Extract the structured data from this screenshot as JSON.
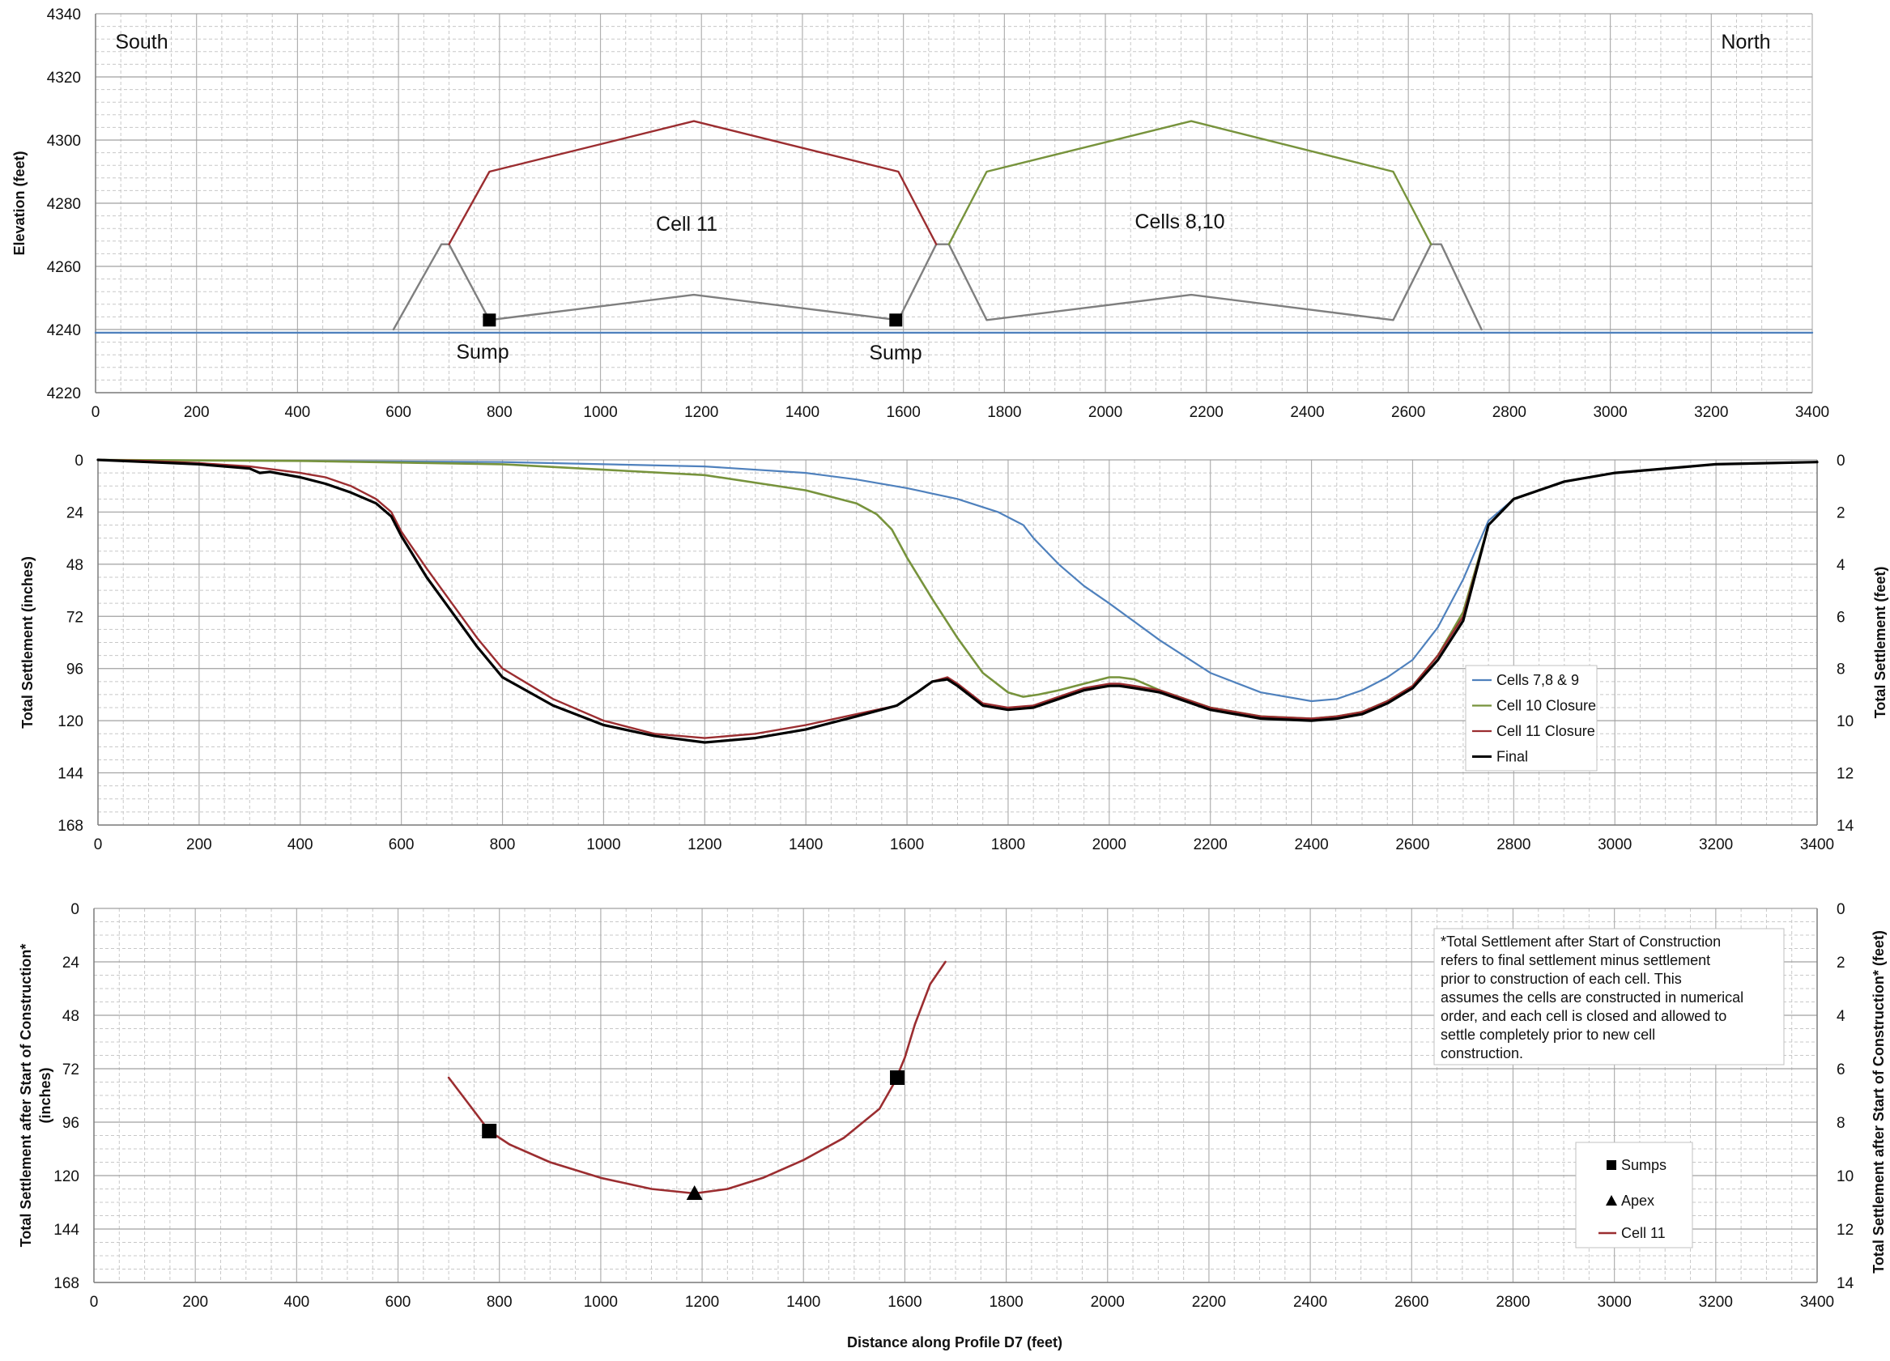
{
  "chart_data": [
    {
      "type": "line",
      "ylabel": "Elevation (feet)",
      "xlim": [
        0,
        3400
      ],
      "ylim": [
        4220,
        4340
      ],
      "xticks": [
        0,
        200,
        400,
        600,
        800,
        1000,
        1200,
        1400,
        1600,
        1800,
        2000,
        2200,
        2400,
        2600,
        2800,
        3000,
        3200,
        3400
      ],
      "yticks": [
        4220,
        4240,
        4260,
        4280,
        4300,
        4320,
        4340
      ],
      "grid": true,
      "annotations": [
        "South",
        "North",
        "Cell 11",
        "Cells 8,10",
        "Sump",
        "Sump"
      ],
      "series": [
        {
          "color": "#9b2d30",
          "x": [
            700,
            780,
            1185,
            1590,
            1665
          ],
          "y": [
            4267,
            4290,
            4306,
            4290,
            4267
          ]
        },
        {
          "color": "#77933c",
          "x": [
            1690,
            1765,
            2170,
            2570,
            2645
          ],
          "y": [
            4267,
            4290,
            4306,
            4290,
            4267
          ]
        },
        {
          "color": "#7f7f7f",
          "x": [
            590,
            685,
            700,
            780,
            1185,
            1590,
            1665,
            1690,
            1765,
            2170,
            2570,
            2645,
            2665,
            2745
          ],
          "y": [
            4240,
            4267,
            4267,
            4243,
            4251,
            4243,
            4267,
            4267,
            4243,
            4251,
            4243,
            4267,
            4267,
            4240
          ]
        },
        {
          "color": "#4f81bd",
          "x": [
            0,
            3400
          ],
          "y": [
            4239,
            4239
          ]
        }
      ],
      "markers": [
        {
          "x": 780,
          "y": 4243
        },
        {
          "x": 1585,
          "y": 4243
        }
      ]
    },
    {
      "type": "line",
      "ylabel": "Total Settlement (inches)",
      "ylabel_right": "Total Settlement (feet)",
      "xlim": [
        0,
        3400
      ],
      "ylim": [
        0,
        168
      ],
      "ylim_right": [
        0,
        14
      ],
      "y_inverted": true,
      "xticks": [
        0,
        200,
        400,
        600,
        800,
        1000,
        1200,
        1400,
        1600,
        1800,
        2000,
        2200,
        2400,
        2600,
        2800,
        3000,
        3200,
        3400
      ],
      "yticks": [
        0,
        24,
        48,
        72,
        96,
        120,
        144,
        168
      ],
      "yticks_right": [
        0,
        2,
        4,
        6,
        8,
        10,
        12,
        14
      ],
      "grid": true,
      "legend_position": "right",
      "series": [
        {
          "name": "Cells 7,8 & 9",
          "color": "#4f81bd",
          "x": [
            0,
            400,
            800,
            1200,
            1400,
            1500,
            1600,
            1700,
            1780,
            1830,
            1850,
            1900,
            1950,
            2000,
            2100,
            2200,
            2300,
            2400,
            2450,
            2500,
            2550,
            2600,
            2650,
            2700,
            2750,
            2800,
            2900,
            3000,
            3200,
            3400
          ],
          "y": [
            0,
            0.5,
            1,
            3,
            6,
            9,
            13,
            18,
            24,
            30,
            36,
            48,
            58,
            66,
            83,
            98,
            107,
            111,
            110,
            106,
            100,
            92,
            77,
            55,
            28,
            18,
            10,
            6,
            2,
            1
          ]
        },
        {
          "name": "Cell 10 Closure",
          "color": "#77933c",
          "x": [
            0,
            400,
            800,
            1200,
            1400,
            1500,
            1540,
            1570,
            1600,
            1650,
            1700,
            1750,
            1800,
            1830,
            1860,
            1900,
            1950,
            2000,
            2020,
            2050,
            2100,
            2200,
            2300,
            2400,
            2450,
            2500,
            2550,
            2600,
            2650,
            2700,
            2750,
            2800,
            2900,
            3000,
            3200,
            3400
          ],
          "y": [
            0,
            0.5,
            2,
            7,
            14,
            20,
            25,
            32,
            45,
            64,
            82,
            98,
            107,
            109,
            108,
            106,
            103,
            100,
            100,
            101,
            106,
            114,
            118,
            119,
            118,
            116,
            111,
            104,
            90,
            70,
            30,
            18,
            10,
            6,
            2,
            1
          ]
        },
        {
          "name": "Cell 11 Closure",
          "color": "#9b2d30",
          "x": [
            0,
            100,
            200,
            300,
            400,
            450,
            500,
            550,
            580,
            600,
            650,
            700,
            750,
            800,
            900,
            1000,
            1100,
            1200,
            1300,
            1400,
            1500,
            1580,
            1620,
            1650,
            1680,
            1700,
            1750,
            1800,
            1850,
            1900,
            1950,
            2000,
            2020,
            2050,
            2100,
            2200,
            2300,
            2400,
            2450,
            2500,
            2550,
            2600,
            2650,
            2700,
            2750,
            2800,
            2900,
            3000,
            3200,
            3400
          ],
          "y": [
            0,
            0.5,
            1.5,
            3,
            6,
            8,
            12,
            18,
            24,
            33,
            50,
            66,
            82,
            96,
            110,
            120,
            126,
            128,
            126,
            122,
            117,
            113,
            107,
            102,
            100,
            103,
            112,
            114,
            113,
            109,
            105,
            103,
            103,
            104,
            106,
            114,
            118,
            119,
            118,
            116,
            111,
            104,
            90,
            72,
            30,
            18,
            10,
            6,
            2,
            1
          ]
        },
        {
          "name": "Final",
          "color": "#000000",
          "x": [
            0,
            100,
            200,
            300,
            320,
            340,
            400,
            450,
            500,
            550,
            580,
            600,
            650,
            700,
            750,
            800,
            900,
            1000,
            1100,
            1200,
            1300,
            1400,
            1500,
            1580,
            1620,
            1650,
            1680,
            1700,
            1750,
            1800,
            1850,
            1900,
            1950,
            2000,
            2020,
            2050,
            2100,
            2200,
            2300,
            2400,
            2450,
            2500,
            2550,
            2600,
            2650,
            2700,
            2750,
            2800,
            2900,
            3000,
            3200,
            3400
          ],
          "y": [
            0,
            1,
            2,
            4,
            6,
            5.5,
            8,
            11,
            15,
            20,
            26,
            35,
            54,
            70,
            86,
            100,
            113,
            122,
            127,
            130,
            128,
            124,
            118,
            113,
            107,
            102,
            101,
            104,
            113,
            115,
            114,
            110,
            106,
            104,
            104,
            105,
            107,
            115,
            119,
            120,
            119,
            117,
            112,
            105,
            92,
            74,
            30,
            18,
            10,
            6,
            2,
            1
          ]
        }
      ]
    },
    {
      "type": "line",
      "xlabel": "Distance along Profile D7 (feet)",
      "ylabel": "Total Settlement after Start of Construction* (inches)",
      "ylabel_right": "Total Settlement after Start of Construction* (feet)",
      "xlim": [
        0,
        3400
      ],
      "ylim": [
        0,
        168
      ],
      "ylim_right": [
        0,
        14
      ],
      "y_inverted": true,
      "xticks": [
        0,
        200,
        400,
        600,
        800,
        1000,
        1200,
        1400,
        1600,
        1800,
        2000,
        2200,
        2400,
        2600,
        2800,
        3000,
        3200,
        3400
      ],
      "yticks": [
        0,
        24,
        48,
        72,
        96,
        120,
        144,
        168
      ],
      "yticks_right": [
        0,
        2,
        4,
        6,
        8,
        10,
        12,
        14
      ],
      "grid": true,
      "legend_position": "right",
      "note": [
        "*Total Settlement after Start of Construction",
        "refers to final settlement minus settlement",
        "prior to construction of each cell.  This",
        "assumes the cells are constructed in numerical",
        "order, and each cell is closed and allowed to",
        "settle completely prior to new cell",
        "construction."
      ],
      "series": [
        {
          "name": "Cell 11",
          "color": "#9b2d30",
          "x": [
            700,
            740,
            780,
            820,
            900,
            1000,
            1100,
            1185,
            1250,
            1320,
            1400,
            1480,
            1550,
            1580,
            1600,
            1620,
            1650,
            1680
          ],
          "y": [
            76,
            88,
            100,
            106,
            114,
            121,
            126,
            128,
            126,
            121,
            113,
            103,
            90,
            78,
            67,
            52,
            34,
            24
          ]
        }
      ],
      "sumps": {
        "name": "Sumps",
        "x": [
          780,
          1585
        ],
        "y": [
          100,
          76
        ]
      },
      "apex": {
        "name": "Apex",
        "x": [
          1185
        ],
        "y": [
          128
        ]
      }
    }
  ]
}
